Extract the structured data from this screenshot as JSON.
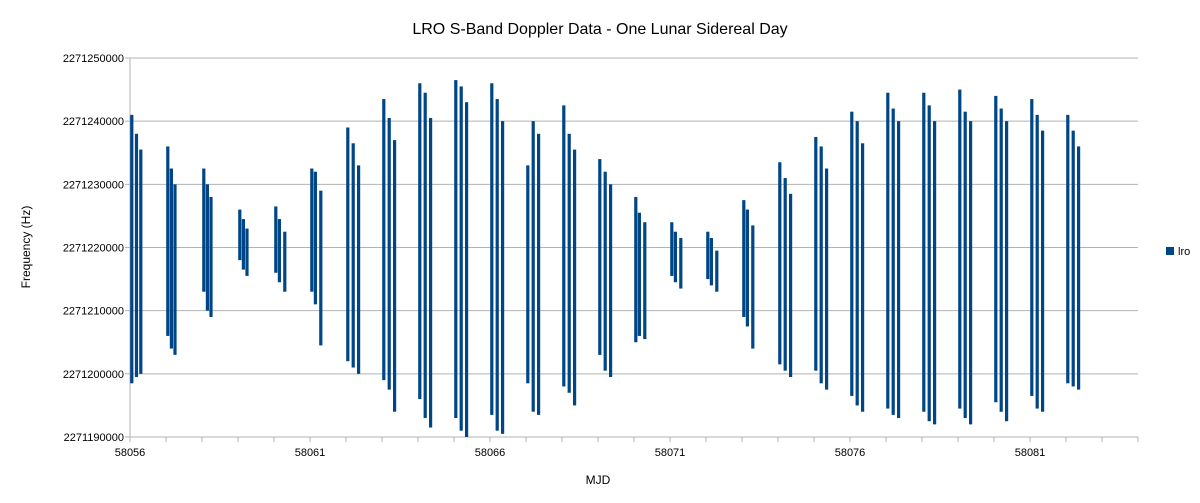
{
  "chart_data": {
    "type": "scatter",
    "title": "LRO S-Band Doppler Data - One Lunar Sidereal Day",
    "xlabel": "MJD",
    "ylabel": "Frequency (Hz)",
    "xlim": [
      58056,
      58084
    ],
    "ylim": [
      2271190000,
      2271250000
    ],
    "xticks": [
      "58056",
      "58061",
      "58066",
      "58071",
      "58076",
      "58081"
    ],
    "yticks": [
      "2271190000",
      "2271200000",
      "2271210000",
      "2271220000",
      "2271230000",
      "2271240000",
      "2271250000"
    ],
    "grid": true,
    "legend_position": "right",
    "series": [
      {
        "name": "lro",
        "color": "#004586",
        "passes": [
          [
            58056.05,
            2271198500,
            2271241000
          ],
          [
            58056.18,
            2271199500,
            2271238000
          ],
          [
            58056.3,
            2271200000,
            2271235500
          ],
          [
            58057.05,
            2271206000,
            2271236000
          ],
          [
            58057.15,
            2271204000,
            2271232500
          ],
          [
            58057.25,
            2271203000,
            2271230000
          ],
          [
            58058.05,
            2271213000,
            2271232500
          ],
          [
            58058.15,
            2271210000,
            2271230000
          ],
          [
            58058.25,
            2271209000,
            2271228000
          ],
          [
            58059.05,
            2271218000,
            2271226000
          ],
          [
            58059.15,
            2271216500,
            2271224500
          ],
          [
            58059.25,
            2271215500,
            2271223000
          ],
          [
            58060.05,
            2271216000,
            2271226500
          ],
          [
            58060.15,
            2271214500,
            2271224500
          ],
          [
            58060.3,
            2271213000,
            2271222500
          ],
          [
            58061.05,
            2271213000,
            2271232500
          ],
          [
            58061.15,
            2271211000,
            2271232000
          ],
          [
            58061.3,
            2271204500,
            2271229000
          ],
          [
            58062.05,
            2271202000,
            2271239000
          ],
          [
            58062.2,
            2271201000,
            2271236500
          ],
          [
            58062.35,
            2271200000,
            2271233000
          ],
          [
            58063.05,
            2271199000,
            2271243500
          ],
          [
            58063.2,
            2271197500,
            2271240500
          ],
          [
            58063.35,
            2271194000,
            2271237000
          ],
          [
            58064.05,
            2271196000,
            2271246000
          ],
          [
            58064.2,
            2271193000,
            2271244500
          ],
          [
            58064.35,
            2271191500,
            2271240500
          ],
          [
            58065.05,
            2271193000,
            2271246500
          ],
          [
            58065.2,
            2271191000,
            2271245500
          ],
          [
            58065.35,
            2271190000,
            2271243000
          ],
          [
            58066.05,
            2271193500,
            2271246000
          ],
          [
            58066.2,
            2271191000,
            2271243500
          ],
          [
            58066.35,
            2271190500,
            2271240000
          ],
          [
            58067.05,
            2271198500,
            2271233000
          ],
          [
            58067.2,
            2271194000,
            2271240000
          ],
          [
            58067.35,
            2271193500,
            2271238000
          ],
          [
            58068.05,
            2271198000,
            2271242500
          ],
          [
            58068.2,
            2271197000,
            2271238000
          ],
          [
            58068.35,
            2271195000,
            2271235500
          ],
          [
            58069.05,
            2271203000,
            2271234000
          ],
          [
            58069.2,
            2271200500,
            2271232000
          ],
          [
            58069.35,
            2271199500,
            2271230000
          ],
          [
            58070.05,
            2271205000,
            2271228000
          ],
          [
            58070.15,
            2271206000,
            2271225500
          ],
          [
            58070.3,
            2271205500,
            2271224000
          ],
          [
            58071.05,
            2271215500,
            2271224000
          ],
          [
            58071.15,
            2271214500,
            2271222500
          ],
          [
            58071.3,
            2271213500,
            2271221500
          ],
          [
            58072.05,
            2271215000,
            2271222500
          ],
          [
            58072.15,
            2271214000,
            2271221500
          ],
          [
            58072.3,
            2271213000,
            2271219500
          ],
          [
            58073.05,
            2271209000,
            2271227500
          ],
          [
            58073.15,
            2271207500,
            2271226000
          ],
          [
            58073.3,
            2271204000,
            2271223500
          ],
          [
            58074.05,
            2271201500,
            2271233500
          ],
          [
            58074.2,
            2271200500,
            2271231000
          ],
          [
            58074.35,
            2271199500,
            2271228500
          ],
          [
            58075.05,
            2271200500,
            2271237500
          ],
          [
            58075.2,
            2271198500,
            2271236000
          ],
          [
            58075.35,
            2271197500,
            2271232500
          ],
          [
            58076.05,
            2271196500,
            2271241500
          ],
          [
            58076.2,
            2271195000,
            2271240000
          ],
          [
            58076.35,
            2271194000,
            2271236500
          ],
          [
            58077.05,
            2271194500,
            2271244500
          ],
          [
            58077.2,
            2271193500,
            2271242000
          ],
          [
            58077.35,
            2271193000,
            2271240000
          ],
          [
            58078.05,
            2271194000,
            2271244500
          ],
          [
            58078.2,
            2271192500,
            2271242500
          ],
          [
            58078.35,
            2271192000,
            2271240000
          ],
          [
            58079.05,
            2271194500,
            2271245000
          ],
          [
            58079.2,
            2271193000,
            2271241500
          ],
          [
            58079.35,
            2271192000,
            2271240000
          ],
          [
            58080.05,
            2271195500,
            2271244000
          ],
          [
            58080.2,
            2271194000,
            2271242000
          ],
          [
            58080.35,
            2271192500,
            2271240000
          ],
          [
            58081.05,
            2271196500,
            2271243500
          ],
          [
            58081.2,
            2271194500,
            2271241000
          ],
          [
            58081.35,
            2271194000,
            2271238500
          ],
          [
            58082.05,
            2271198500,
            2271241000
          ],
          [
            58082.2,
            2271198000,
            2271238500
          ],
          [
            58082.35,
            2271197500,
            2271236000
          ]
        ]
      }
    ]
  }
}
